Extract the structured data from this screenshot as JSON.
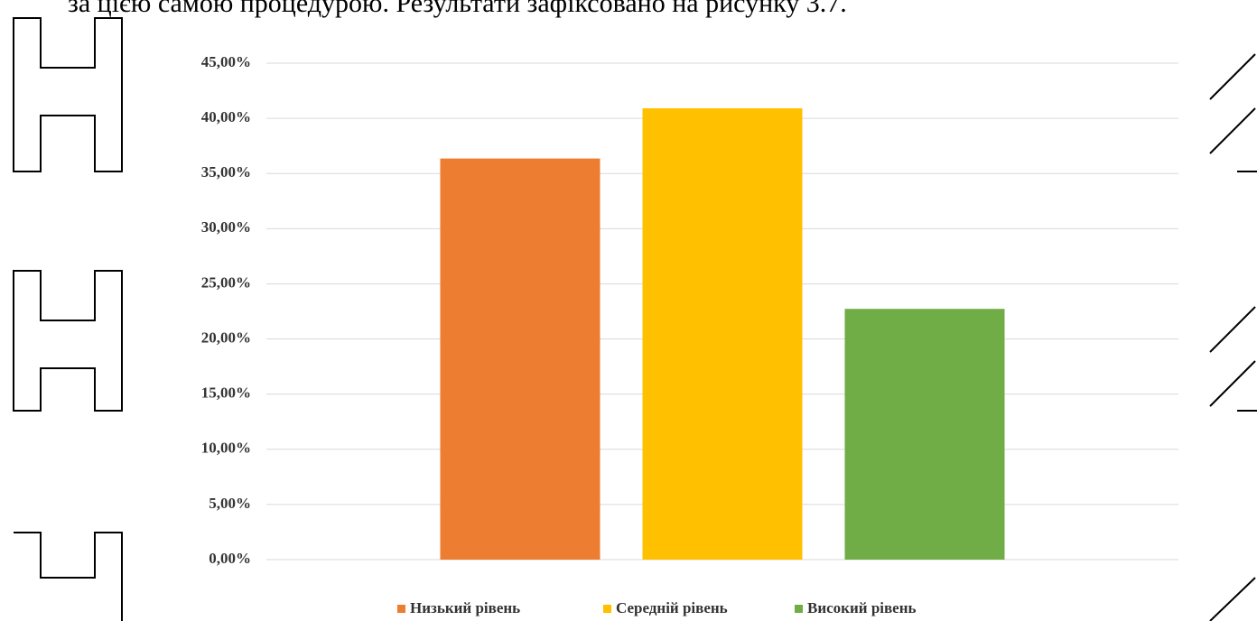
{
  "document_text": "за цією самою процедурою. Результати зафіксовано на рисунку 3.7.",
  "chart_data": {
    "type": "bar",
    "categories": [
      null
    ],
    "series": [
      {
        "name": "Низький рівень",
        "color": "#ed7d31",
        "values": [
          36.36
        ]
      },
      {
        "name": "Середній рівень",
        "color": "#ffc000",
        "values": [
          40.91
        ]
      },
      {
        "name": "Високий рівень",
        "color": "#70ad47",
        "values": [
          22.73
        ]
      }
    ],
    "ylim": [
      0,
      45
    ],
    "yticks": [
      {
        "value": 0,
        "label": "0,00%"
      },
      {
        "value": 5,
        "label": "5,00%"
      },
      {
        "value": 10,
        "label": "10,00%"
      },
      {
        "value": 15,
        "label": "15,00%"
      },
      {
        "value": 20,
        "label": "20,00%"
      },
      {
        "value": 25,
        "label": "25,00%"
      },
      {
        "value": 30,
        "label": "30,00%"
      },
      {
        "value": 35,
        "label": "35,00%"
      },
      {
        "value": 40,
        "label": "40,00%"
      },
      {
        "value": 45,
        "label": "45,00%"
      }
    ],
    "grid": true,
    "legend": "bottom"
  }
}
